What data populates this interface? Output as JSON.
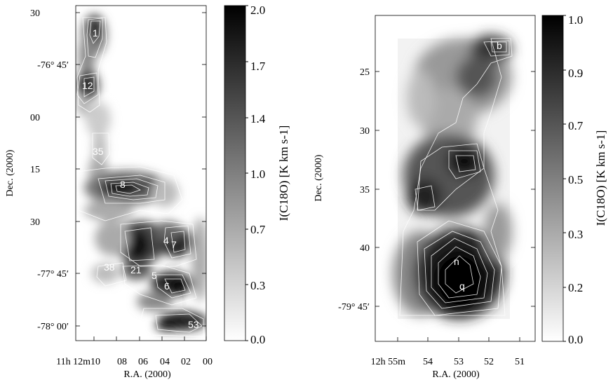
{
  "chart_data": [
    {
      "type": "heatmap",
      "xlabel": "R.A. (2000)",
      "ylabel": "Dec. (2000)",
      "x_ticks": [
        "11h 12m10",
        "08",
        "06",
        "04",
        "02",
        "00"
      ],
      "y_ticks": [
        "30",
        "-76° 45′",
        "00",
        "15",
        "30",
        "-77° 45′",
        "-78° 00′"
      ],
      "colorbar": {
        "label": "I(C18O) [K km s-1]",
        "min": 0.0,
        "max": 2.0,
        "ticks": [
          "2.0",
          "1.7",
          "1.4",
          "1.0",
          "0.7",
          "0.3",
          "0.0"
        ],
        "colormap": "white-to-black"
      },
      "source_labels": [
        "1",
        "12",
        "35",
        "8",
        "4",
        "7",
        "38",
        "21",
        "5",
        "6",
        "53"
      ]
    },
    {
      "type": "heatmap",
      "xlabel": "R.A. (2000)",
      "ylabel": "Dec. (2000)",
      "x_ticks": [
        "12h 55m",
        "54",
        "53",
        "52",
        "51"
      ],
      "y_ticks": [
        "25",
        "30",
        "35",
        "40",
        "-79° 45′"
      ],
      "colorbar": {
        "label": "I(C18O) [K km s-1]",
        "min": 0.0,
        "max": 1.0,
        "ticks": [
          "1.0",
          "0.9",
          "0.7",
          "0.5",
          "0.3",
          "0.2",
          "0.0"
        ],
        "colormap": "white-to-black"
      },
      "source_labels": [
        "b",
        "n",
        "q"
      ]
    }
  ]
}
